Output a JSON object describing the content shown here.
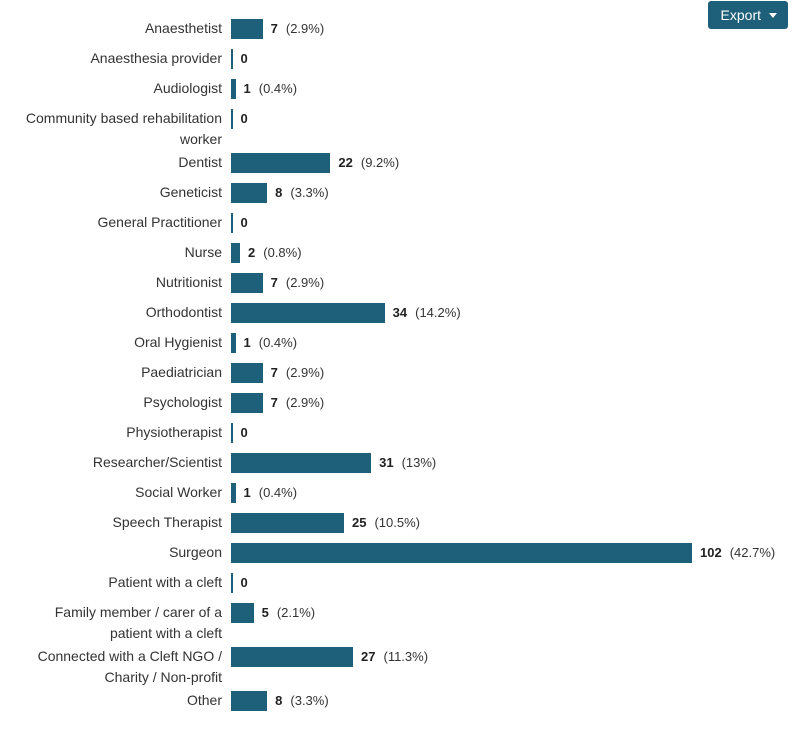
{
  "export": {
    "label": "Export",
    "icon": "caret-down-icon"
  },
  "chart_data": {
    "type": "bar",
    "orientation": "horizontal",
    "title": "",
    "xlabel": "",
    "ylabel": "",
    "grid": false,
    "bar_color": "#1e5f7a",
    "categories": [
      [
        "Anaesthetist"
      ],
      [
        "Anaesthesia provider"
      ],
      [
        "Audiologist"
      ],
      [
        "Community based rehabilitation",
        "worker"
      ],
      [
        "Dentist"
      ],
      [
        "Geneticist"
      ],
      [
        "General Practitioner"
      ],
      [
        "Nurse"
      ],
      [
        "Nutritionist"
      ],
      [
        "Orthodontist"
      ],
      [
        "Oral Hygienist"
      ],
      [
        "Paediatrician"
      ],
      [
        "Psychologist"
      ],
      [
        "Physiotherapist"
      ],
      [
        "Researcher/Scientist"
      ],
      [
        "Social Worker"
      ],
      [
        "Speech Therapist"
      ],
      [
        "Surgeon"
      ],
      [
        "Patient with a cleft"
      ],
      [
        "Family member / carer of a",
        "patient with a cleft"
      ],
      [
        "Connected with a Cleft NGO /",
        "Charity / Non-profit"
      ],
      [
        "Other"
      ]
    ],
    "values": [
      7,
      0,
      1,
      0,
      22,
      8,
      0,
      2,
      7,
      34,
      1,
      7,
      7,
      0,
      31,
      1,
      25,
      102,
      0,
      5,
      27,
      8
    ],
    "percent_labels": [
      "(2.9%)",
      "",
      "(0.4%)",
      "",
      "(9.2%)",
      "(3.3%)",
      "",
      "(0.8%)",
      "(2.9%)",
      "(14.2%)",
      "(0.4%)",
      "(2.9%)",
      "(2.9%)",
      "",
      "(13%)",
      "(0.4%)",
      "(10.5%)",
      "(42.7%)",
      "",
      "(2.1%)",
      "(11.3%)",
      "(3.3%)"
    ]
  }
}
